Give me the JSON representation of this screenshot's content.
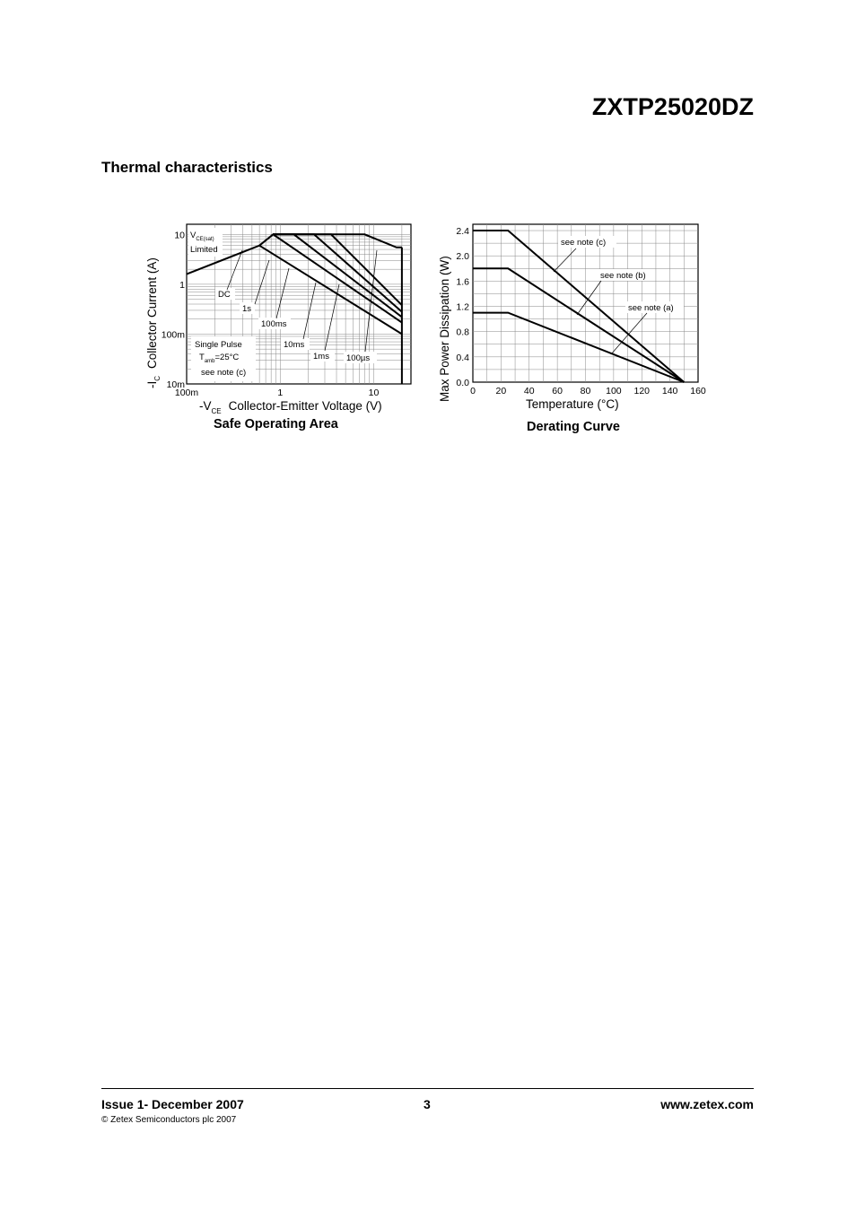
{
  "header": {
    "part_number": "ZXTP25020DZ"
  },
  "section": {
    "title": "Thermal characteristics"
  },
  "chart_data": [
    {
      "type": "line",
      "title": "Safe Operating Area",
      "xlabel_prefix": "-V",
      "xlabel_sub": "CE",
      "xlabel_text": "Collector-Emitter Voltage (V)",
      "ylabel_prefix": "-I",
      "ylabel_sub": "C",
      "ylabel_text": "Collector Current (A)",
      "x_scale": "log",
      "y_scale": "log",
      "xlim": [
        0.1,
        25
      ],
      "ylim": [
        0.01,
        16
      ],
      "x_tick_labels": [
        "100m",
        "1",
        "10"
      ],
      "x_tick_values": [
        0.1,
        1,
        10
      ],
      "y_tick_labels": [
        "10m",
        "100m",
        "1",
        "10"
      ],
      "y_tick_values": [
        0.01,
        0.1,
        1,
        10
      ],
      "grid": true,
      "series": [
        {
          "name": "DC",
          "x": [
            0.1,
            0.6,
            20
          ],
          "y": [
            1.6,
            6.0,
            0.1
          ]
        },
        {
          "name": "1s",
          "x": [
            0.6,
            0.84,
            20
          ],
          "y": [
            6.0,
            10,
            0.17
          ]
        },
        {
          "name": "100ms",
          "x": [
            0.84,
            1.4,
            20
          ],
          "y": [
            10,
            10,
            0.22
          ]
        },
        {
          "name": "10ms",
          "x": [
            0.84,
            2.3,
            20
          ],
          "y": [
            10,
            10,
            0.28
          ]
        },
        {
          "name": "1ms",
          "x": [
            0.84,
            3.5,
            20
          ],
          "y": [
            10,
            10,
            0.38
          ]
        },
        {
          "name": "100µs",
          "x": [
            0.84,
            8.0,
            17.5,
            20
          ],
          "y": [
            10,
            10,
            5.5,
            5.5
          ]
        }
      ],
      "annotations": {
        "vce_sat_prefix": "V",
        "vce_sat_sub": "CE(sat)",
        "limited": "Limited",
        "single_pulse": "Single Pulse",
        "tamb_prefix": "T",
        "tamb_sub": "amb",
        "tamb_value": "=25°C",
        "note": "see note (c)"
      }
    },
    {
      "type": "line",
      "title": "Derating Curve",
      "xlabel": "Temperature (°C)",
      "ylabel": "Max Power Dissipation (W)",
      "xlim": [
        0,
        160
      ],
      "ylim": [
        0,
        2.5
      ],
      "x_ticks": [
        0,
        20,
        40,
        60,
        80,
        100,
        120,
        140,
        160
      ],
      "y_ticks": [
        "0.0",
        "0.4",
        "0.8",
        "1.2",
        "1.6",
        "2.0",
        "2.4"
      ],
      "grid": true,
      "series": [
        {
          "name": "see note (c)",
          "x": [
            0,
            25,
            150
          ],
          "y": [
            2.4,
            2.4,
            0
          ]
        },
        {
          "name": "see note (b)",
          "x": [
            0,
            25,
            150
          ],
          "y": [
            1.8,
            1.8,
            0
          ]
        },
        {
          "name": "see note (a)",
          "x": [
            0,
            25,
            150
          ],
          "y": [
            1.1,
            1.1,
            0
          ]
        }
      ]
    }
  ],
  "footer": {
    "issue": "Issue 1- December 2007",
    "page": "3",
    "website": "www.zetex.com",
    "copyright": "© Zetex Semiconductors plc 2007"
  }
}
